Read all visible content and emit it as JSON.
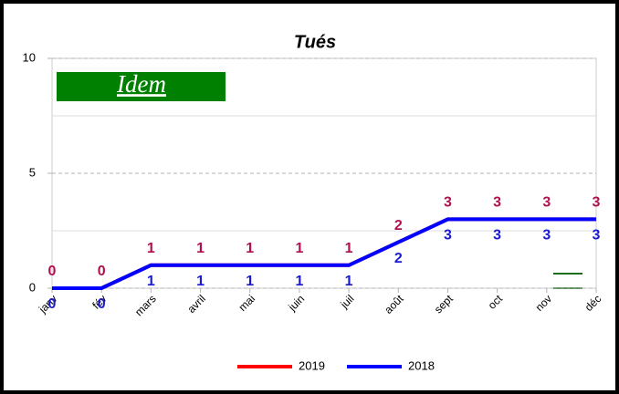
{
  "chart_data": {
    "type": "line",
    "title": "Tués",
    "categories": [
      "janv",
      "fév",
      "mars",
      "avril",
      "mai",
      "juin",
      "juil",
      "août",
      "sept",
      "oct",
      "nov",
      "déc"
    ],
    "series": [
      {
        "name": "2019",
        "color": "#ff0000",
        "label_color": "#b0104f",
        "values": [
          0,
          0,
          1,
          1,
          1,
          1,
          1,
          2,
          3,
          3,
          3,
          3
        ]
      },
      {
        "name": "2018",
        "color": "#0000ff",
        "label_color": "#1a1ad0",
        "values": [
          0,
          0,
          1,
          1,
          1,
          1,
          1,
          2,
          3,
          3,
          3,
          3
        ]
      }
    ],
    "ylim": [
      0,
      10
    ],
    "yticks": [
      0,
      5,
      10
    ],
    "minor_yticks": [
      2.5,
      7.5
    ],
    "grid": true,
    "annotation": "Idem",
    "legend": "bottom"
  }
}
